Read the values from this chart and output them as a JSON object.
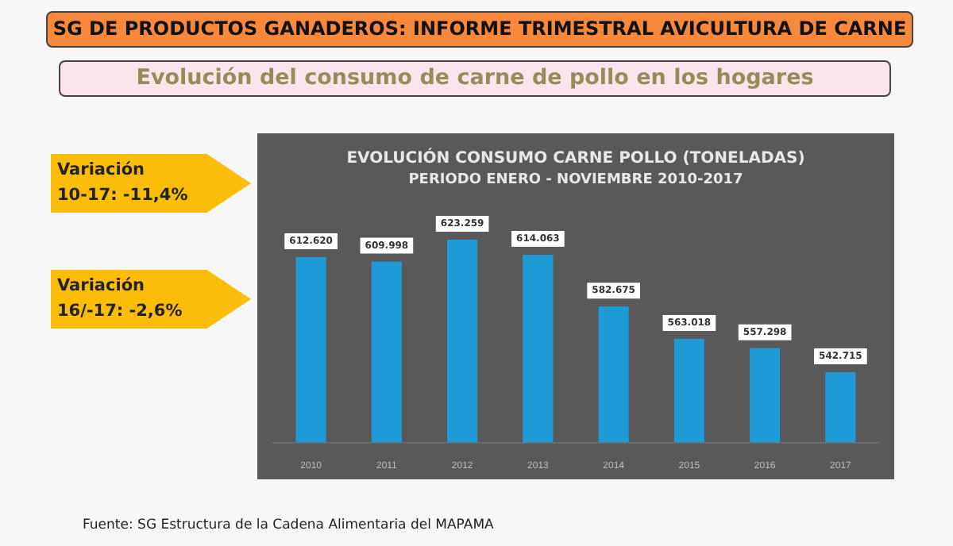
{
  "chart_data": {
    "type": "bar",
    "title": "EVOLUCIÓN CONSUMO CARNE POLLO (TONELADAS)",
    "subtitle": "PERIODO ENERO - NOVIEMBRE 2010-2017",
    "categories": [
      "2010",
      "2011",
      "2012",
      "2013",
      "2014",
      "2015",
      "2016",
      "2017"
    ],
    "values": [
      612620,
      609998,
      623259,
      614063,
      582675,
      563018,
      557298,
      542715
    ],
    "value_labels": [
      "612.620",
      "609.998",
      "623.259",
      "614.063",
      "582.675",
      "563.018",
      "557.298",
      "542.715"
    ],
    "color": "#1e9ad6",
    "ylim": [
      500000,
      635000
    ],
    "grid": false,
    "legend": false,
    "tick_labels": "x",
    "annotations": [
      "SG DE PRODUCTOS GANADEROS: INFORME TRIMESTRAL AVICULTURA DE CARNE",
      "Evolución del consumo de carne de pollo en los hogares",
      "Variación\n10-17: -11,4%",
      "Variación\n16/-17: -2,6%",
      "Fuente: SG Estructura de la Cadena Alimentaria del MAPAMA"
    ]
  }
}
